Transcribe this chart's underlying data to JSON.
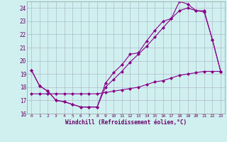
{
  "xlabel": "Windchill (Refroidissement éolien,°C)",
  "background_color": "#d0f0f0",
  "grid_color": "#b0b8cc",
  "line_color": "#880088",
  "xlim": [
    -0.5,
    23.5
  ],
  "ylim": [
    16,
    24.5
  ],
  "yticks": [
    16,
    17,
    18,
    19,
    20,
    21,
    22,
    23,
    24
  ],
  "xticks": [
    0,
    1,
    2,
    3,
    4,
    5,
    6,
    7,
    8,
    9,
    10,
    11,
    12,
    13,
    14,
    15,
    16,
    17,
    18,
    19,
    20,
    21,
    22,
    23
  ],
  "line1_x": [
    0,
    1,
    2,
    3,
    4,
    5,
    6,
    7,
    8,
    9,
    10,
    11,
    12,
    13,
    14,
    15,
    16,
    17,
    18,
    19,
    20,
    21,
    22,
    23
  ],
  "line1_y": [
    19.3,
    18.1,
    17.7,
    17.0,
    16.9,
    16.7,
    16.5,
    16.5,
    16.5,
    18.3,
    19.1,
    19.7,
    20.5,
    20.6,
    21.5,
    22.3,
    23.0,
    23.2,
    24.5,
    24.3,
    23.8,
    23.7,
    21.6,
    19.2
  ],
  "line2_x": [
    0,
    1,
    2,
    3,
    4,
    5,
    6,
    7,
    8,
    9,
    10,
    11,
    12,
    13,
    14,
    15,
    16,
    17,
    18,
    19,
    20,
    21,
    22,
    23
  ],
  "line2_y": [
    19.3,
    18.1,
    17.7,
    17.0,
    16.9,
    16.7,
    16.5,
    16.5,
    16.5,
    18.0,
    18.6,
    19.2,
    19.9,
    20.5,
    21.1,
    21.8,
    22.5,
    23.2,
    23.8,
    24.0,
    23.8,
    23.8,
    21.6,
    19.2
  ],
  "line3_x": [
    0,
    1,
    2,
    3,
    4,
    5,
    6,
    7,
    8,
    9,
    10,
    11,
    12,
    13,
    14,
    15,
    16,
    17,
    18,
    19,
    20,
    21,
    22,
    23
  ],
  "line3_y": [
    17.5,
    17.5,
    17.5,
    17.5,
    17.5,
    17.5,
    17.5,
    17.5,
    17.5,
    17.6,
    17.7,
    17.8,
    17.9,
    18.0,
    18.2,
    18.4,
    18.5,
    18.7,
    18.9,
    19.0,
    19.1,
    19.2,
    19.2,
    19.2
  ]
}
